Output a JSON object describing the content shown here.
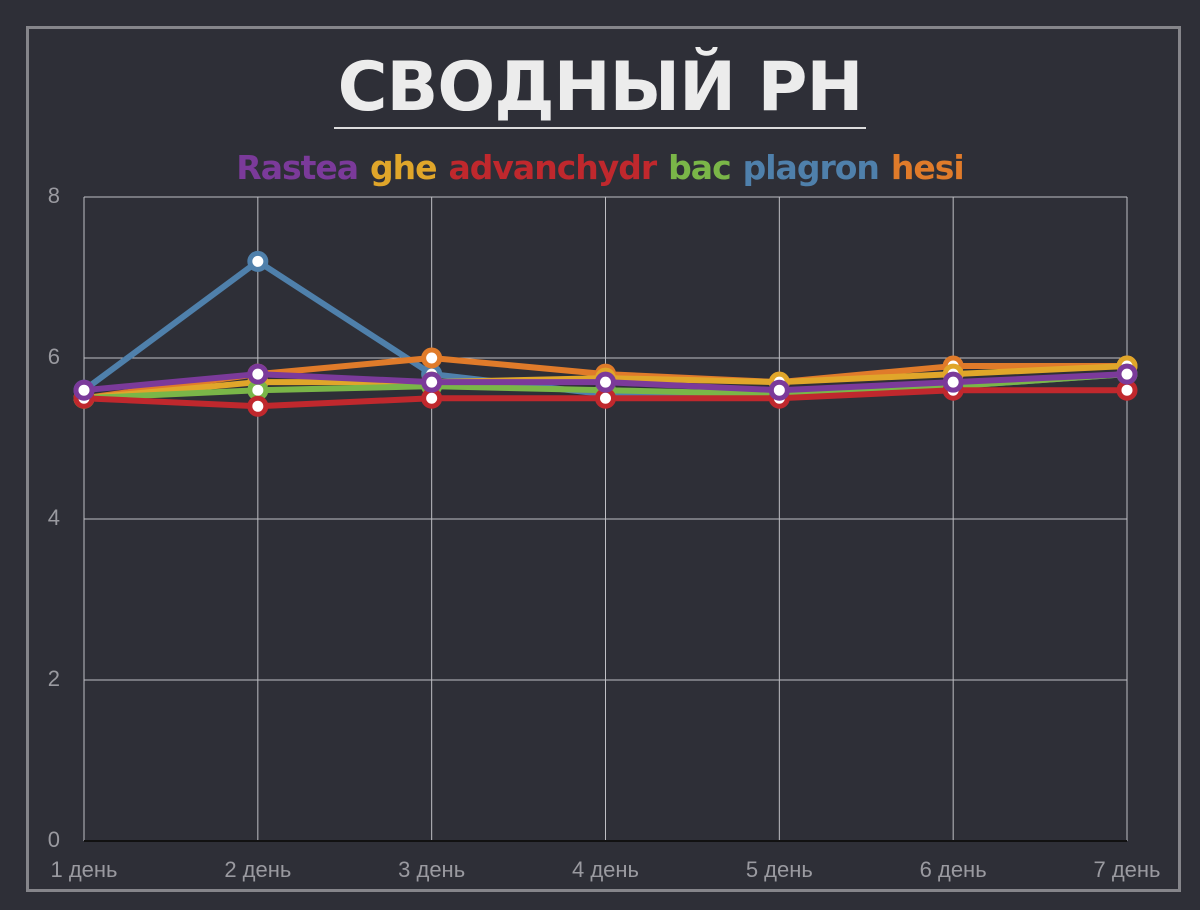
{
  "chart_data": {
    "type": "line",
    "title": "СВОДНЫЙ PH",
    "categories": [
      "1 день",
      "2 день",
      "3 день",
      "4 день",
      "5 день",
      "6 день",
      "7 день"
    ],
    "series": [
      {
        "name": "Rastea",
        "color": "#7b3a9a",
        "values": [
          5.6,
          5.8,
          5.7,
          5.7,
          5.6,
          5.7,
          5.8
        ]
      },
      {
        "name": "ghe",
        "color": "#e0a62a",
        "values": [
          5.5,
          5.7,
          5.7,
          5.75,
          5.7,
          5.8,
          5.9
        ]
      },
      {
        "name": "advanchydr",
        "color": "#c0282d",
        "values": [
          5.5,
          5.4,
          5.5,
          5.5,
          5.5,
          5.6,
          5.6
        ]
      },
      {
        "name": "bac",
        "color": "#7ab648",
        "values": [
          5.5,
          5.6,
          5.65,
          5.6,
          5.55,
          5.65,
          5.8
        ]
      },
      {
        "name": "plagron",
        "color": "#4f80ab",
        "values": [
          5.6,
          7.2,
          5.8,
          5.55,
          5.55,
          5.65,
          5.8
        ]
      },
      {
        "name": "hesi",
        "color": "#e07b2a",
        "values": [
          5.5,
          5.8,
          6.0,
          5.8,
          5.7,
          5.9,
          5.9
        ]
      }
    ],
    "ylim": [
      0,
      8
    ],
    "yticks": [
      0,
      2,
      4,
      6,
      8
    ],
    "grid": true
  }
}
